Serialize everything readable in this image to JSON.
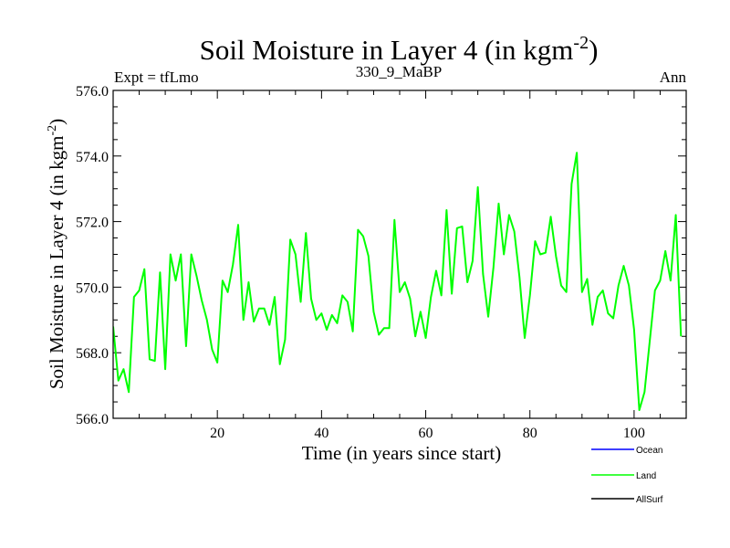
{
  "chart_data": {
    "type": "line",
    "title_main": "Soil Moisture in Layer 4 (in kgm",
    "title_sup": "-2",
    "title_close": ")",
    "left_label": "Expt = tfLmo",
    "center_label": "330_9_MaBP",
    "right_label": "Ann",
    "xlabel": "Time (in years since start)",
    "ylabel_main": "Soil Moisture in Layer 4 (in kgm",
    "ylabel_sup": "-2",
    "ylabel_close": ")",
    "xlim": [
      0,
      110
    ],
    "ylim": [
      566,
      576
    ],
    "x_ticks": [
      20,
      40,
      60,
      80,
      100
    ],
    "x_tick_labels": [
      "20",
      "40",
      "60",
      "80",
      "100"
    ],
    "y_ticks": [
      566,
      568,
      570,
      572,
      574,
      576
    ],
    "y_tick_labels": [
      "566.0",
      "568.0",
      "570.0",
      "572.0",
      "574.0",
      "576.0"
    ],
    "legend": [
      {
        "name": "Ocean",
        "color": "#0000ff"
      },
      {
        "name": "Land",
        "color": "#00ff00"
      },
      {
        "name": "AllSurf",
        "color": "#000000"
      }
    ],
    "series": [
      {
        "name": "Land",
        "color": "#00ff00",
        "x_start": 0,
        "x_step": 1,
        "values": [
          568.8,
          567.15,
          567.5,
          566.8,
          569.7,
          569.9,
          570.55,
          567.8,
          567.75,
          570.45,
          567.5,
          571.0,
          570.2,
          571.0,
          568.2,
          571.0,
          570.35,
          569.6,
          569.0,
          568.1,
          567.7,
          570.2,
          569.85,
          570.7,
          571.9,
          569.0,
          570.15,
          568.95,
          569.35,
          569.35,
          568.85,
          569.7,
          567.65,
          568.4,
          571.45,
          571.0,
          569.55,
          571.65,
          569.65,
          569.0,
          569.2,
          568.7,
          569.15,
          568.9,
          569.75,
          569.55,
          568.65,
          571.75,
          571.55,
          570.95,
          569.25,
          568.55,
          568.75,
          568.75,
          572.05,
          569.85,
          570.15,
          569.65,
          568.5,
          569.25,
          568.45,
          569.7,
          570.5,
          569.75,
          572.35,
          569.8,
          571.8,
          571.85,
          570.15,
          570.8,
          573.05,
          570.4,
          569.1,
          570.6,
          572.55,
          571.0,
          572.2,
          571.7,
          570.3,
          568.45,
          569.75,
          571.4,
          571.0,
          571.05,
          572.15,
          570.95,
          570.05,
          569.85,
          573.15,
          574.1,
          569.85,
          570.25,
          568.85,
          569.7,
          569.9,
          569.2,
          569.05,
          570.05,
          570.65,
          570.05,
          568.7,
          566.25,
          566.8,
          568.35,
          569.9,
          570.2,
          571.1,
          570.2,
          572.2,
          568.5
        ]
      }
    ]
  }
}
